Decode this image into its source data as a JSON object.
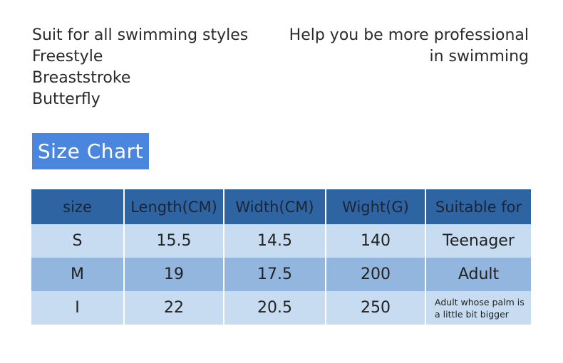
{
  "intro": {
    "left_lines": [
      "Suit for all swimming styles",
      "Freestyle",
      "Breaststroke",
      "Butterfly"
    ],
    "right_lines": [
      "Help you be more professional",
      "in swimming"
    ]
  },
  "badge": {
    "label": "Size Chart",
    "color": "#4a86dd"
  },
  "table": {
    "headers": [
      "size",
      "Length(CM)",
      "Width(CM)",
      "Wight(G)",
      "Suitable for"
    ],
    "rows": [
      [
        "S",
        "15.5",
        "14.5",
        "140",
        "Teenager"
      ],
      [
        "M",
        "19",
        "17.5",
        "200",
        "Adult"
      ],
      [
        "I",
        "22",
        "20.5",
        "250",
        "Adult whose palm is a little bit bigger"
      ]
    ],
    "header_color": "#2f64a2",
    "row_colors": [
      "#c7dcf1",
      "#92b6de",
      "#c7dcf1"
    ]
  }
}
